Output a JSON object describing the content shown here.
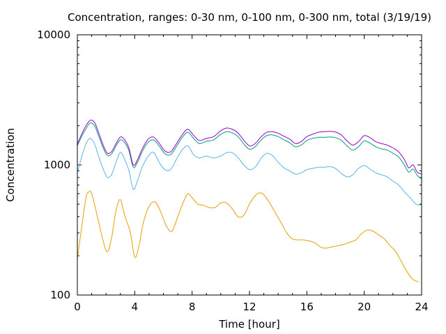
{
  "chart_data": {
    "type": "line",
    "title": "Concentration, ranges: 0-30 nm, 0-100 nm, 0-300 nm, total (3/19/19)",
    "xlabel": "Time [hour]",
    "ylabel": "Concentration",
    "xlim": [
      0,
      24
    ],
    "ylim": [
      100,
      10000
    ],
    "yscale": "log",
    "grid": false,
    "legend": "none",
    "x_ticks": [
      "0",
      "4",
      "8",
      "12",
      "16",
      "20",
      "24"
    ],
    "y_ticks": [
      "100",
      "1000",
      "10000"
    ],
    "series": [
      {
        "color": "#e69f00",
        "x": [
          0,
          0.3,
          0.6,
          0.8,
          1.0,
          1.4,
          1.8,
          2.1,
          2.4,
          2.7,
          3.0,
          3.3,
          3.7,
          4.0,
          4.3,
          4.6,
          5.0,
          5.4,
          5.8,
          6.2,
          6.6,
          7.0,
          7.4,
          7.7,
          8.0,
          8.4,
          8.8,
          9.2,
          9.6,
          10.0,
          10.4,
          10.8,
          11.2,
          11.6,
          12.0,
          12.4,
          12.7,
          13.0,
          13.4,
          13.8,
          14.2,
          14.6,
          15.0,
          15.4,
          15.8,
          16.2,
          16.6,
          17.0,
          17.4,
          17.8,
          18.2,
          18.6,
          19.0,
          19.4,
          19.8,
          20.2,
          20.6,
          21.0,
          21.4,
          21.8,
          22.2,
          22.6,
          23.0,
          23.4,
          23.8
        ],
        "values": [
          190,
          330,
          560,
          620,
          600,
          400,
          260,
          215,
          280,
          450,
          540,
          410,
          300,
          195,
          240,
          360,
          480,
          520,
          440,
          340,
          310,
          400,
          520,
          600,
          560,
          500,
          490,
          470,
          470,
          510,
          510,
          460,
          400,
          410,
          500,
          580,
          610,
          590,
          510,
          430,
          360,
          300,
          270,
          265,
          265,
          260,
          250,
          232,
          230,
          235,
          240,
          245,
          255,
          265,
          295,
          315,
          310,
          290,
          270,
          240,
          215,
          180,
          150,
          132,
          126
        ]
      },
      {
        "color": "#56b4e9",
        "x": [
          0,
          0.3,
          0.6,
          0.9,
          1.2,
          1.5,
          1.8,
          2.1,
          2.4,
          2.7,
          3.0,
          3.3,
          3.6,
          3.9,
          4.2,
          4.5,
          4.9,
          5.3,
          5.7,
          6.1,
          6.5,
          6.9,
          7.3,
          7.7,
          8.1,
          8.5,
          9.0,
          9.5,
          10.0,
          10.4,
          10.8,
          11.2,
          11.6,
          12.0,
          12.4,
          12.8,
          13.2,
          13.6,
          14.0,
          14.4,
          14.8,
          15.2,
          15.6,
          16.0,
          16.4,
          16.8,
          17.2,
          17.6,
          18.0,
          18.4,
          18.8,
          19.2,
          19.6,
          20.0,
          20.4,
          20.8,
          21.2,
          21.6,
          22.0,
          22.4,
          22.8,
          23.2,
          23.6,
          24.0
        ],
        "values": [
          870,
          1150,
          1450,
          1600,
          1450,
          1150,
          930,
          800,
          850,
          1050,
          1250,
          1100,
          900,
          650,
          760,
          950,
          1150,
          1250,
          1050,
          920,
          920,
          1100,
          1300,
          1400,
          1200,
          1130,
          1170,
          1130,
          1170,
          1240,
          1240,
          1140,
          1000,
          920,
          960,
          1120,
          1230,
          1180,
          1050,
          950,
          900,
          850,
          870,
          920,
          940,
          960,
          960,
          970,
          940,
          860,
          810,
          840,
          940,
          990,
          930,
          870,
          840,
          810,
          750,
          700,
          620,
          560,
          500,
          490
        ]
      },
      {
        "color": "#009e73",
        "x": [
          0,
          0.3,
          0.6,
          0.9,
          1.2,
          1.5,
          1.8,
          2.1,
          2.4,
          2.7,
          3.0,
          3.3,
          3.6,
          3.9,
          4.2,
          4.5,
          4.9,
          5.3,
          5.7,
          6.1,
          6.5,
          6.9,
          7.3,
          7.7,
          8.1,
          8.5,
          9.0,
          9.5,
          10.0,
          10.4,
          10.8,
          11.2,
          11.6,
          12.0,
          12.4,
          12.8,
          13.2,
          13.6,
          14.0,
          14.4,
          14.8,
          15.2,
          15.6,
          16.0,
          16.4,
          16.8,
          17.2,
          17.6,
          18.0,
          18.4,
          18.8,
          19.2,
          19.6,
          20.0,
          20.4,
          20.8,
          21.2,
          21.6,
          22.0,
          22.4,
          22.8,
          23.1,
          23.4,
          23.7,
          24.0
        ],
        "values": [
          1400,
          1650,
          1900,
          2100,
          2000,
          1650,
          1350,
          1180,
          1220,
          1400,
          1560,
          1480,
          1280,
          960,
          1050,
          1250,
          1480,
          1560,
          1400,
          1220,
          1200,
          1380,
          1620,
          1780,
          1600,
          1460,
          1520,
          1560,
          1720,
          1800,
          1760,
          1650,
          1450,
          1320,
          1380,
          1550,
          1680,
          1700,
          1650,
          1560,
          1480,
          1380,
          1420,
          1540,
          1600,
          1630,
          1630,
          1640,
          1620,
          1550,
          1400,
          1300,
          1380,
          1530,
          1470,
          1380,
          1330,
          1300,
          1230,
          1150,
          1000,
          880,
          930,
          830,
          780
        ]
      },
      {
        "color": "#9400d3",
        "x": [
          0,
          0.3,
          0.6,
          0.9,
          1.2,
          1.5,
          1.8,
          2.1,
          2.4,
          2.7,
          3.0,
          3.3,
          3.6,
          3.9,
          4.2,
          4.5,
          4.9,
          5.3,
          5.7,
          6.1,
          6.5,
          6.9,
          7.3,
          7.7,
          8.1,
          8.5,
          9.0,
          9.5,
          10.0,
          10.4,
          10.8,
          11.2,
          11.6,
          12.0,
          12.4,
          12.8,
          13.2,
          13.6,
          14.0,
          14.4,
          14.8,
          15.2,
          15.6,
          16.0,
          16.4,
          16.8,
          17.2,
          17.6,
          18.0,
          18.4,
          18.8,
          19.2,
          19.6,
          20.0,
          20.4,
          20.8,
          21.2,
          21.6,
          22.0,
          22.4,
          22.8,
          23.1,
          23.4,
          23.7,
          24.0
        ],
        "values": [
          1450,
          1720,
          2000,
          2200,
          2120,
          1750,
          1420,
          1230,
          1270,
          1460,
          1640,
          1560,
          1340,
          1000,
          1100,
          1310,
          1560,
          1640,
          1470,
          1280,
          1260,
          1450,
          1700,
          1880,
          1690,
          1540,
          1600,
          1650,
          1830,
          1920,
          1880,
          1760,
          1550,
          1400,
          1460,
          1640,
          1780,
          1800,
          1750,
          1660,
          1580,
          1460,
          1510,
          1650,
          1720,
          1780,
          1800,
          1810,
          1790,
          1700,
          1530,
          1420,
          1510,
          1680,
          1620,
          1510,
          1460,
          1420,
          1350,
          1260,
          1100,
          950,
          1000,
          880,
          850
        ]
      }
    ]
  }
}
